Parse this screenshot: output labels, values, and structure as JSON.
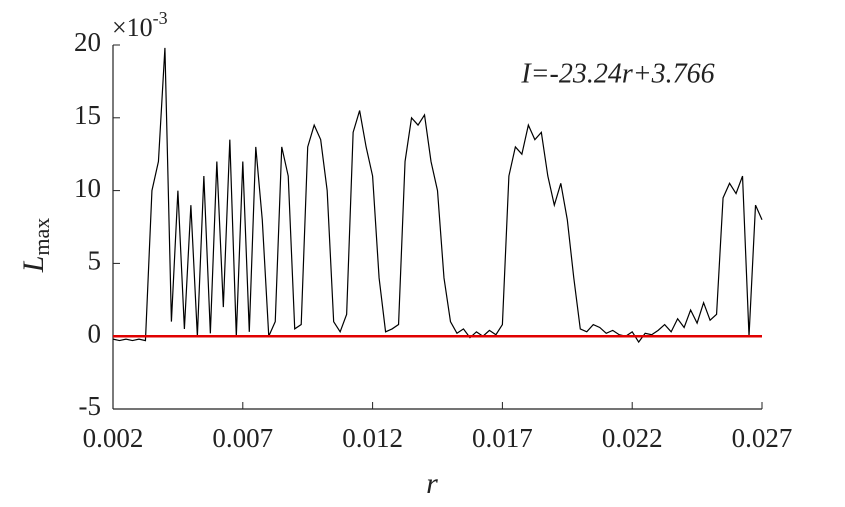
{
  "chart_data": {
    "type": "line",
    "annotation": "I=-23.24r+3.766",
    "xlabel": "r",
    "ylabel": {
      "main": "L",
      "sub": "max"
    },
    "y_multiplier": {
      "base": "×10",
      "power": "-3"
    },
    "x": [
      0.002,
      0.00225,
      0.0025,
      0.00275,
      0.003,
      0.00325,
      0.0035,
      0.00375,
      0.004,
      0.00425,
      0.0045,
      0.00475,
      0.005,
      0.00525,
      0.0055,
      0.00575,
      0.006,
      0.00625,
      0.0065,
      0.00675,
      0.007,
      0.00725,
      0.0075,
      0.00775,
      0.008,
      0.00825,
      0.0085,
      0.00875,
      0.009,
      0.00925,
      0.0095,
      0.00975,
      0.01,
      0.01025,
      0.0105,
      0.01075,
      0.011,
      0.01125,
      0.0115,
      0.01175,
      0.012,
      0.01225,
      0.0125,
      0.01275,
      0.013,
      0.01325,
      0.0135,
      0.01375,
      0.014,
      0.01425,
      0.0145,
      0.01475,
      0.015,
      0.01525,
      0.0155,
      0.01575,
      0.016,
      0.01625,
      0.0165,
      0.01675,
      0.017,
      0.01725,
      0.0175,
      0.01775,
      0.018,
      0.01825,
      0.0185,
      0.01875,
      0.019,
      0.01925,
      0.0195,
      0.01975,
      0.02,
      0.02025,
      0.0205,
      0.02075,
      0.021,
      0.02125,
      0.0215,
      0.02175,
      0.022,
      0.02225,
      0.0225,
      0.02275,
      0.023,
      0.02325,
      0.0235,
      0.02375,
      0.024,
      0.02425,
      0.0245,
      0.02475,
      0.025,
      0.02525,
      0.0255,
      0.02575,
      0.026,
      0.02625,
      0.0265,
      0.02675,
      0.027
    ],
    "values": [
      -0.2,
      -0.3,
      -0.2,
      -0.3,
      -0.2,
      -0.3,
      10,
      12,
      19.8,
      1,
      10,
      0.5,
      9,
      0,
      11,
      0.2,
      12,
      2,
      13.5,
      0,
      12,
      0.3,
      13,
      8,
      0,
      1,
      13,
      11,
      0.5,
      0.8,
      13,
      14.5,
      13.5,
      10,
      1,
      0.3,
      1.5,
      14,
      15.5,
      13,
      11,
      4,
      0.3,
      0.5,
      0.8,
      12,
      15,
      14.5,
      15.2,
      12,
      10,
      4,
      1,
      0.2,
      0.5,
      -0.1,
      0.3,
      0,
      0.4,
      0.1,
      0.8,
      11,
      13,
      12.5,
      14.5,
      13.5,
      14,
      11,
      9,
      10.5,
      8,
      4,
      0.5,
      0.3,
      0.8,
      0.6,
      0.2,
      0.4,
      0.1,
      0,
      0.3,
      -0.4,
      0.2,
      0.1,
      0.4,
      0.8,
      0.3,
      1.2,
      0.6,
      1.8,
      0.9,
      2.3,
      1.1,
      1.5,
      9.5,
      10.5,
      9.8,
      11,
      0,
      9,
      8
    ],
    "color": "#000000",
    "reference_line": {
      "value": 0,
      "color": "#e00000"
    },
    "xlim": [
      0.002,
      0.027
    ],
    "xticks": [
      0.002,
      0.007,
      0.012,
      0.017,
      0.022,
      0.027
    ],
    "ylim": [
      -5,
      20
    ],
    "yticks": [
      -5,
      0,
      5,
      10,
      15,
      20
    ]
  }
}
